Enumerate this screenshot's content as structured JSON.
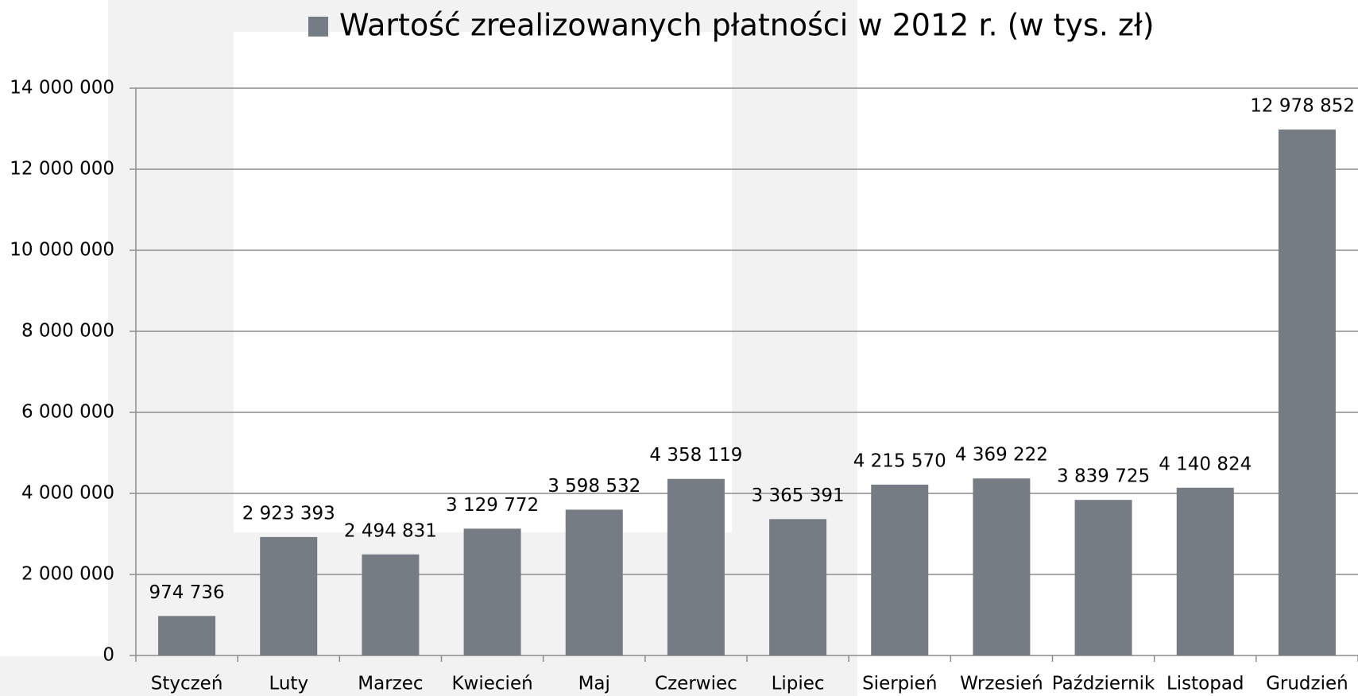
{
  "chart_data": {
    "type": "bar",
    "categories": [
      "Styczeń",
      "Luty",
      "Marzec",
      "Kwiecień",
      "Maj",
      "Czerwiec",
      "Lipiec",
      "Sierpień",
      "Wrzesień",
      "Październik",
      "Listopad",
      "Grudzień"
    ],
    "series": [
      {
        "name": "Wartość zrealizowanych płatności w 2012 r. (w tys. zł)",
        "color": "#767c83",
        "values": [
          974736,
          2923393,
          2494831,
          3129772,
          3598532,
          4358119,
          3365391,
          4215570,
          4369222,
          3839725,
          4140824,
          12978852
        ],
        "value_labels": [
          "974 736",
          "2 923 393",
          "2 494 831",
          "3 129 772",
          "3 598 532",
          "4 358 119",
          "3 365 391",
          "4 215 570",
          "4 369 222",
          "3 839 725",
          "4 140 824",
          "12 978 852"
        ]
      }
    ],
    "ylim": [
      0,
      14000000
    ],
    "yticks": [
      0,
      {
        "value": 2000000,
        "label": "2 000 000"
      },
      {
        "value": 4000000,
        "label": "4 000 000"
      },
      {
        "value": 6000000,
        "label": "6 000 000"
      },
      {
        "value": 8000000,
        "label": "8 000 000"
      },
      {
        "value": 10000000,
        "label": "10 000 000"
      },
      {
        "value": 12000000,
        "label": "12 000 000"
      },
      {
        "value": 14000000,
        "label": "14 000 000"
      }
    ],
    "grid": true,
    "legend": "top"
  }
}
